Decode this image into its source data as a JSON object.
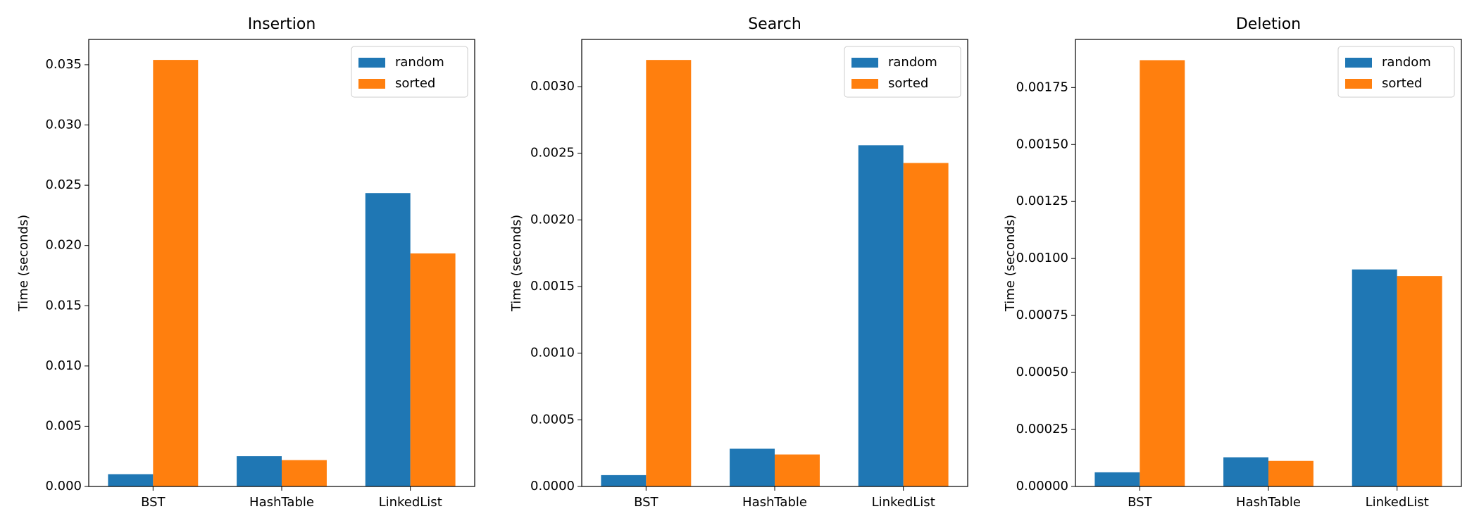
{
  "chart_data": [
    {
      "type": "bar",
      "title": "Insertion",
      "ylabel": "Time (seconds)",
      "legend": "upper right",
      "categories": [
        "BST",
        "HashTable",
        "LinkedList"
      ],
      "series": [
        {
          "name": "random",
          "color": "#1f77b4",
          "values": [
            0.00102,
            0.00251,
            0.02435
          ]
        },
        {
          "name": "sorted",
          "color": "#ff7f0e",
          "values": [
            0.0354,
            0.00219,
            0.01934
          ]
        }
      ],
      "ylim": [
        0,
        0.0371
      ],
      "yticks": [
        {
          "value": 0,
          "label": "0.000"
        },
        0.005,
        {
          "value": 0.01,
          "label": "0.010"
        },
        0.015,
        {
          "value": 0.02,
          "label": "0.020"
        },
        0.025,
        {
          "value": 0.03,
          "label": "0.030"
        },
        0.035
      ]
    },
    {
      "type": "bar",
      "title": "Search",
      "ylabel": "Time (seconds)",
      "legend": "upper right",
      "categories": [
        "BST",
        "HashTable",
        "LinkedList"
      ],
      "series": [
        {
          "name": "random",
          "color": "#1f77b4",
          "values": [
            8.5e-05,
            0.000283,
            0.00256
          ]
        },
        {
          "name": "sorted",
          "color": "#ff7f0e",
          "values": [
            0.0032,
            0.00024,
            0.002427
          ]
        }
      ],
      "ylim": [
        0,
        0.003354
      ],
      "yticks": [
        {
          "value": 0,
          "label": "0.0000"
        },
        0.0005,
        {
          "value": 0.001,
          "label": "0.0010"
        },
        0.0015,
        {
          "value": 0.002,
          "label": "0.0020"
        },
        0.0025,
        {
          "value": 0.003,
          "label": "0.0030"
        }
      ]
    },
    {
      "type": "bar",
      "title": "Deletion",
      "ylabel": "Time (seconds)",
      "legend": "upper right",
      "categories": [
        "BST",
        "HashTable",
        "LinkedList"
      ],
      "series": [
        {
          "name": "random",
          "color": "#1f77b4",
          "values": [
            6.2e-05,
            0.000128,
            0.000952
          ]
        },
        {
          "name": "sorted",
          "color": "#ff7f0e",
          "values": [
            0.00187,
            0.000112,
            0.000923
          ]
        }
      ],
      "ylim": [
        0,
        0.001961
      ],
      "yticks": [
        {
          "value": 0,
          "label": "0.00000"
        },
        0.00025,
        {
          "value": 0.0005,
          "label": "0.00050"
        },
        0.00075,
        {
          "value": 0.001,
          "label": "0.00100"
        },
        0.00125,
        {
          "value": 0.0015,
          "label": "0.00150"
        },
        0.00175
      ]
    }
  ]
}
